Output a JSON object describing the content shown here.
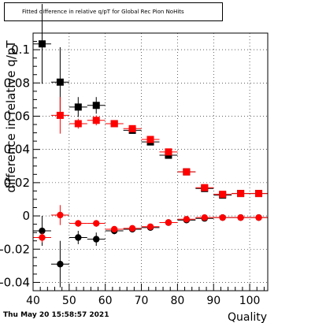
{
  "timestamp": "Thu May 20 15:58:57 2021",
  "chart_data": {
    "type": "scatter",
    "title": "Fitted difference in relative q/pT for Global Rec Pion NoHits",
    "xlabel": "Quality",
    "ylabel": "difference in relative q/pT",
    "xlim": [
      40,
      105
    ],
    "ylim": [
      -0.045,
      0.11
    ],
    "x_ticks": [
      40,
      50,
      60,
      70,
      80,
      90,
      100
    ],
    "y_ticks": [
      -0.04,
      -0.02,
      0,
      0.02,
      0.04,
      0.06,
      0.08,
      0.1
    ],
    "y_tick_labels": [
      "-0.04",
      "-0.02",
      "0",
      "0.02",
      "0.04",
      "0.06",
      "0.08",
      "0.1"
    ],
    "grid": true,
    "series": [
      {
        "color": "#000000",
        "marker": "square",
        "points": [
          {
            "x": 42.5,
            "y": 0.1035,
            "yerr": 0.024
          },
          {
            "x": 47.5,
            "y": 0.0805,
            "yerr": 0.021
          },
          {
            "x": 52.5,
            "y": 0.0655,
            "yerr": 0.006
          },
          {
            "x": 57.5,
            "y": 0.0665,
            "yerr": 0.005
          },
          {
            "x": 62.5,
            "y": 0.0555,
            "yerr": 0.002
          },
          {
            "x": 67.5,
            "y": 0.0515,
            "yerr": 0.001
          },
          {
            "x": 72.5,
            "y": 0.0445,
            "yerr": 0.001
          },
          {
            "x": 77.5,
            "y": 0.0365,
            "yerr": 0.001
          },
          {
            "x": 82.5,
            "y": 0.0265,
            "yerr": 0.001
          },
          {
            "x": 87.5,
            "y": 0.0165,
            "yerr": 0.001
          },
          {
            "x": 92.5,
            "y": 0.0125,
            "yerr": 0.001
          },
          {
            "x": 97.5,
            "y": 0.0135,
            "yerr": 0.001
          },
          {
            "x": 102.5,
            "y": 0.0135,
            "yerr": 0.001
          }
        ]
      },
      {
        "color": "#ff0000",
        "marker": "square",
        "points": [
          {
            "x": 47.5,
            "y": 0.0605,
            "yerr": 0.011
          },
          {
            "x": 52.5,
            "y": 0.0555,
            "yerr": 0.003
          },
          {
            "x": 57.5,
            "y": 0.0575,
            "yerr": 0.003
          },
          {
            "x": 62.5,
            "y": 0.0555,
            "yerr": 0.002
          },
          {
            "x": 67.5,
            "y": 0.0525,
            "yerr": 0.001
          },
          {
            "x": 72.5,
            "y": 0.046,
            "yerr": 0.001
          },
          {
            "x": 77.5,
            "y": 0.0385,
            "yerr": 0.001
          },
          {
            "x": 82.5,
            "y": 0.0265,
            "yerr": 0.001
          },
          {
            "x": 87.5,
            "y": 0.017,
            "yerr": 0.001
          },
          {
            "x": 92.5,
            "y": 0.013,
            "yerr": 0.001
          },
          {
            "x": 97.5,
            "y": 0.0135,
            "yerr": 0.001
          },
          {
            "x": 102.5,
            "y": 0.0135,
            "yerr": 0.001
          }
        ]
      },
      {
        "color": "#000000",
        "marker": "circle",
        "points": [
          {
            "x": 42.5,
            "y": -0.009,
            "yerr": 0.009
          },
          {
            "x": 47.5,
            "y": -0.029,
            "yerr": 0.014
          },
          {
            "x": 52.5,
            "y": -0.013,
            "yerr": 0.004
          },
          {
            "x": 57.5,
            "y": -0.014,
            "yerr": 0.004
          },
          {
            "x": 62.5,
            "y": -0.009,
            "yerr": 0.002
          },
          {
            "x": 67.5,
            "y": -0.008,
            "yerr": 0.001
          },
          {
            "x": 72.5,
            "y": -0.007,
            "yerr": 0.001
          },
          {
            "x": 77.5,
            "y": -0.004,
            "yerr": 0.001
          },
          {
            "x": 82.5,
            "y": -0.0025,
            "yerr": 0.001
          },
          {
            "x": 87.5,
            "y": -0.0015,
            "yerr": 0.001
          },
          {
            "x": 92.5,
            "y": -0.001,
            "yerr": 0.001
          },
          {
            "x": 97.5,
            "y": -0.001,
            "yerr": 0.001
          },
          {
            "x": 102.5,
            "y": -0.001,
            "yerr": 0.001
          }
        ]
      },
      {
        "color": "#ff0000",
        "marker": "circle",
        "points": [
          {
            "x": 42.5,
            "y": -0.013,
            "yerr": 0.003
          },
          {
            "x": 47.5,
            "y": 0.0005,
            "yerr": 0.006
          },
          {
            "x": 52.5,
            "y": -0.0045,
            "yerr": 0.002
          },
          {
            "x": 57.5,
            "y": -0.0045,
            "yerr": 0.002
          },
          {
            "x": 62.5,
            "y": -0.008,
            "yerr": 0.001
          },
          {
            "x": 67.5,
            "y": -0.0075,
            "yerr": 0.001
          },
          {
            "x": 72.5,
            "y": -0.0065,
            "yerr": 0.001
          },
          {
            "x": 77.5,
            "y": -0.004,
            "yerr": 0.001
          },
          {
            "x": 82.5,
            "y": -0.002,
            "yerr": 0.001
          },
          {
            "x": 87.5,
            "y": -0.001,
            "yerr": 0.001
          },
          {
            "x": 92.5,
            "y": -0.001,
            "yerr": 0.001
          },
          {
            "x": 97.5,
            "y": -0.001,
            "yerr": 0.001
          },
          {
            "x": 102.5,
            "y": -0.001,
            "yerr": 0.001
          }
        ]
      }
    ]
  }
}
